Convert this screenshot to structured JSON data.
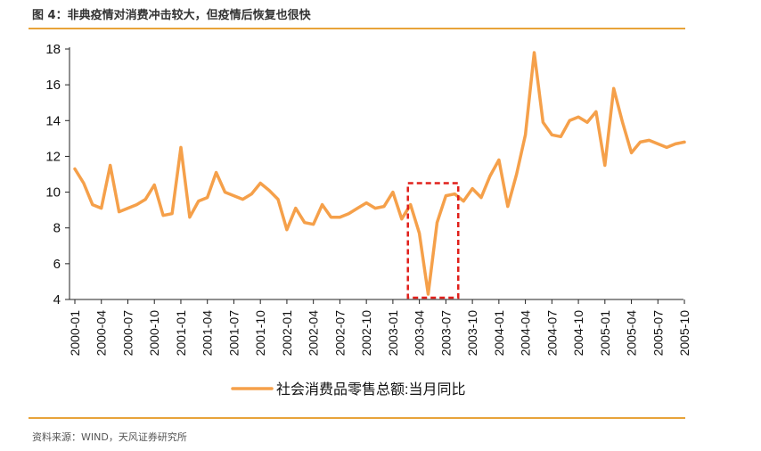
{
  "figure": {
    "title": "图 4：非典疫情对消费冲击较大，但疫情后恢复也很快",
    "source": "资料来源：WIND，天风证券研究所"
  },
  "colors": {
    "line": "#F5A04A",
    "highlight_box": "#E0201B",
    "rule": "#E8A33A"
  },
  "chart_data": {
    "type": "line",
    "x": [
      "2000-01",
      "2000-02",
      "2000-03",
      "2000-04",
      "2000-05",
      "2000-06",
      "2000-07",
      "2000-08",
      "2000-09",
      "2000-10",
      "2000-11",
      "2000-12",
      "2001-01",
      "2001-02",
      "2001-03",
      "2001-04",
      "2001-05",
      "2001-06",
      "2001-07",
      "2001-08",
      "2001-09",
      "2001-10",
      "2001-11",
      "2001-12",
      "2002-01",
      "2002-02",
      "2002-03",
      "2002-04",
      "2002-05",
      "2002-06",
      "2002-07",
      "2002-08",
      "2002-09",
      "2002-10",
      "2002-11",
      "2002-12",
      "2003-01",
      "2003-02",
      "2003-03",
      "2003-04",
      "2003-05",
      "2003-06",
      "2003-07",
      "2003-08",
      "2003-09",
      "2003-10",
      "2003-11",
      "2003-12",
      "2004-01",
      "2004-02",
      "2004-03",
      "2004-04",
      "2004-05",
      "2004-06",
      "2004-07",
      "2004-08",
      "2004-09",
      "2004-10",
      "2004-11",
      "2004-12",
      "2005-01",
      "2005-02",
      "2005-03",
      "2005-04",
      "2005-05",
      "2005-06",
      "2005-07",
      "2005-08",
      "2005-09",
      "2005-10"
    ],
    "series": [
      {
        "name": "社会消费品零售总额:当月同比",
        "values": [
          11.3,
          10.5,
          9.3,
          9.1,
          11.5,
          8.9,
          9.1,
          9.3,
          9.6,
          10.4,
          8.7,
          8.8,
          12.5,
          8.6,
          9.5,
          9.7,
          11.1,
          10.0,
          9.8,
          9.6,
          9.9,
          10.5,
          10.1,
          9.6,
          7.9,
          9.1,
          8.3,
          8.2,
          9.3,
          8.6,
          8.6,
          8.8,
          9.1,
          9.4,
          9.1,
          9.2,
          10.0,
          8.5,
          9.3,
          7.7,
          4.3,
          8.3,
          9.8,
          9.9,
          9.5,
          10.2,
          9.7,
          10.9,
          11.8,
          9.2,
          11.0,
          13.2,
          17.8,
          13.9,
          13.2,
          13.1,
          14.0,
          14.2,
          13.9,
          14.5,
          11.5,
          15.8,
          13.9,
          12.2,
          12.8,
          12.9,
          12.7,
          12.5,
          12.7,
          12.8
        ]
      }
    ],
    "xticks": [
      "2000-01",
      "2000-04",
      "2000-07",
      "2000-10",
      "2001-01",
      "2001-04",
      "2001-07",
      "2001-10",
      "2002-01",
      "2002-04",
      "2002-07",
      "2002-10",
      "2003-01",
      "2003-04",
      "2003-07",
      "2003-10",
      "2004-01",
      "2004-04",
      "2004-07",
      "2004-10",
      "2005-01",
      "2005-04",
      "2005-07",
      "2005-10"
    ],
    "yticks": [
      4,
      6,
      8,
      10,
      12,
      14,
      16,
      18
    ],
    "ylim": [
      4,
      18
    ],
    "highlight": {
      "from": "2003-03",
      "to": "2003-08",
      "ylim": [
        4,
        10.5
      ],
      "style": "dashed-box"
    },
    "legend": {
      "position": "bottom"
    },
    "grid": false
  }
}
